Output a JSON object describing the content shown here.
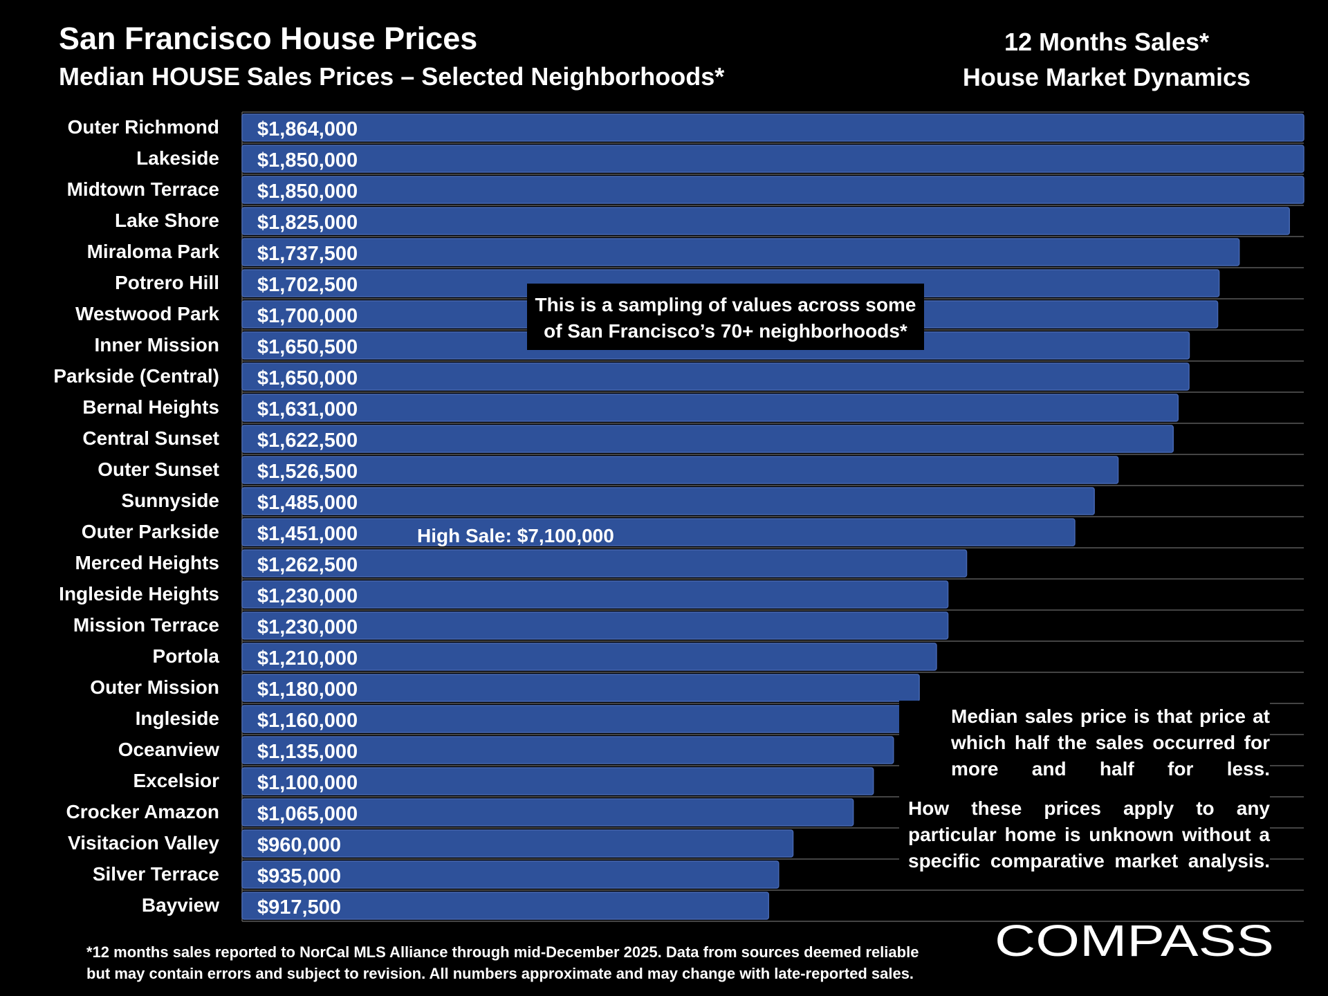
{
  "header": {
    "title": "San Francisco House Prices",
    "subtitle": "Median HOUSE Sales Prices – Selected Neighborhoods*",
    "right_line1": "12 Months Sales*",
    "right_line2": "House Market Dynamics"
  },
  "callout": {
    "line1": "This is a sampling of values across some",
    "line2": "of San Francisco’s 70+ neighborhoods*"
  },
  "high_sale_note": "High Sale:  $7,100,000",
  "notes": {
    "median_def": [
      "Median sales price is that price at",
      "which half the sales occurred for",
      "more and half for less."
    ],
    "disclaimer": [
      "How these prices apply to any",
      "particular home is unknown without a",
      "specific comparative market analysis."
    ]
  },
  "footnote": [
    "*12 months sales reported to NorCal MLS Alliance through mid-December 2025. Data from sources deemed reliable",
    "but may contain errors and subject to revision. All numbers approximate and may change with late-reported sales."
  ],
  "logo": {
    "text": "COMPASS"
  },
  "colors": {
    "bar": "#2e519a",
    "bar_edge": "#4767b0",
    "background": "#000000",
    "grid": "#5a5a5a",
    "text": "#ffffff"
  },
  "chart_data": {
    "type": "bar",
    "orientation": "horizontal",
    "categories": [
      "Outer Richmond",
      "Lakeside",
      "Midtown Terrace",
      "Lake Shore",
      "Miraloma Park",
      "Potrero Hill",
      "Westwood Park",
      "Inner Mission",
      "Parkside (Central)",
      "Bernal Heights",
      "Central Sunset",
      "Outer Sunset",
      "Sunnyside",
      "Outer Parkside",
      "Merced Heights",
      "Ingleside Heights",
      "Mission Terrace",
      "Portola",
      "Outer Mission",
      "Ingleside",
      "Oceanview",
      "Excelsior",
      "Crocker Amazon",
      "Visitacion Valley",
      "Silver Terrace",
      "Bayview"
    ],
    "values": [
      1864000,
      1850000,
      1850000,
      1825000,
      1737500,
      1702500,
      1700000,
      1650500,
      1650000,
      1631000,
      1622500,
      1526500,
      1485000,
      1451000,
      1262500,
      1230000,
      1230000,
      1210000,
      1180000,
      1160000,
      1135000,
      1100000,
      1065000,
      960000,
      935000,
      917500
    ],
    "value_labels": [
      "$1,864,000",
      "$1,850,000",
      "$1,850,000",
      "$1,825,000",
      "$1,737,500",
      "$1,702,500",
      "$1,700,000",
      "$1,650,500",
      "$1,650,000",
      "$1,631,000",
      "$1,622,500",
      "$1,526,500",
      "$1,485,000",
      "$1,451,000",
      "$1,262,500",
      "$1,230,000",
      "$1,230,000",
      "$1,210,000",
      "$1,180,000",
      "$1,160,000",
      "$1,135,000",
      "$1,100,000",
      "$1,065,000",
      "$960,000",
      "$935,000",
      "$917,500"
    ],
    "xlim": [
      0,
      1850000
    ],
    "grid": true,
    "legend": "none"
  }
}
